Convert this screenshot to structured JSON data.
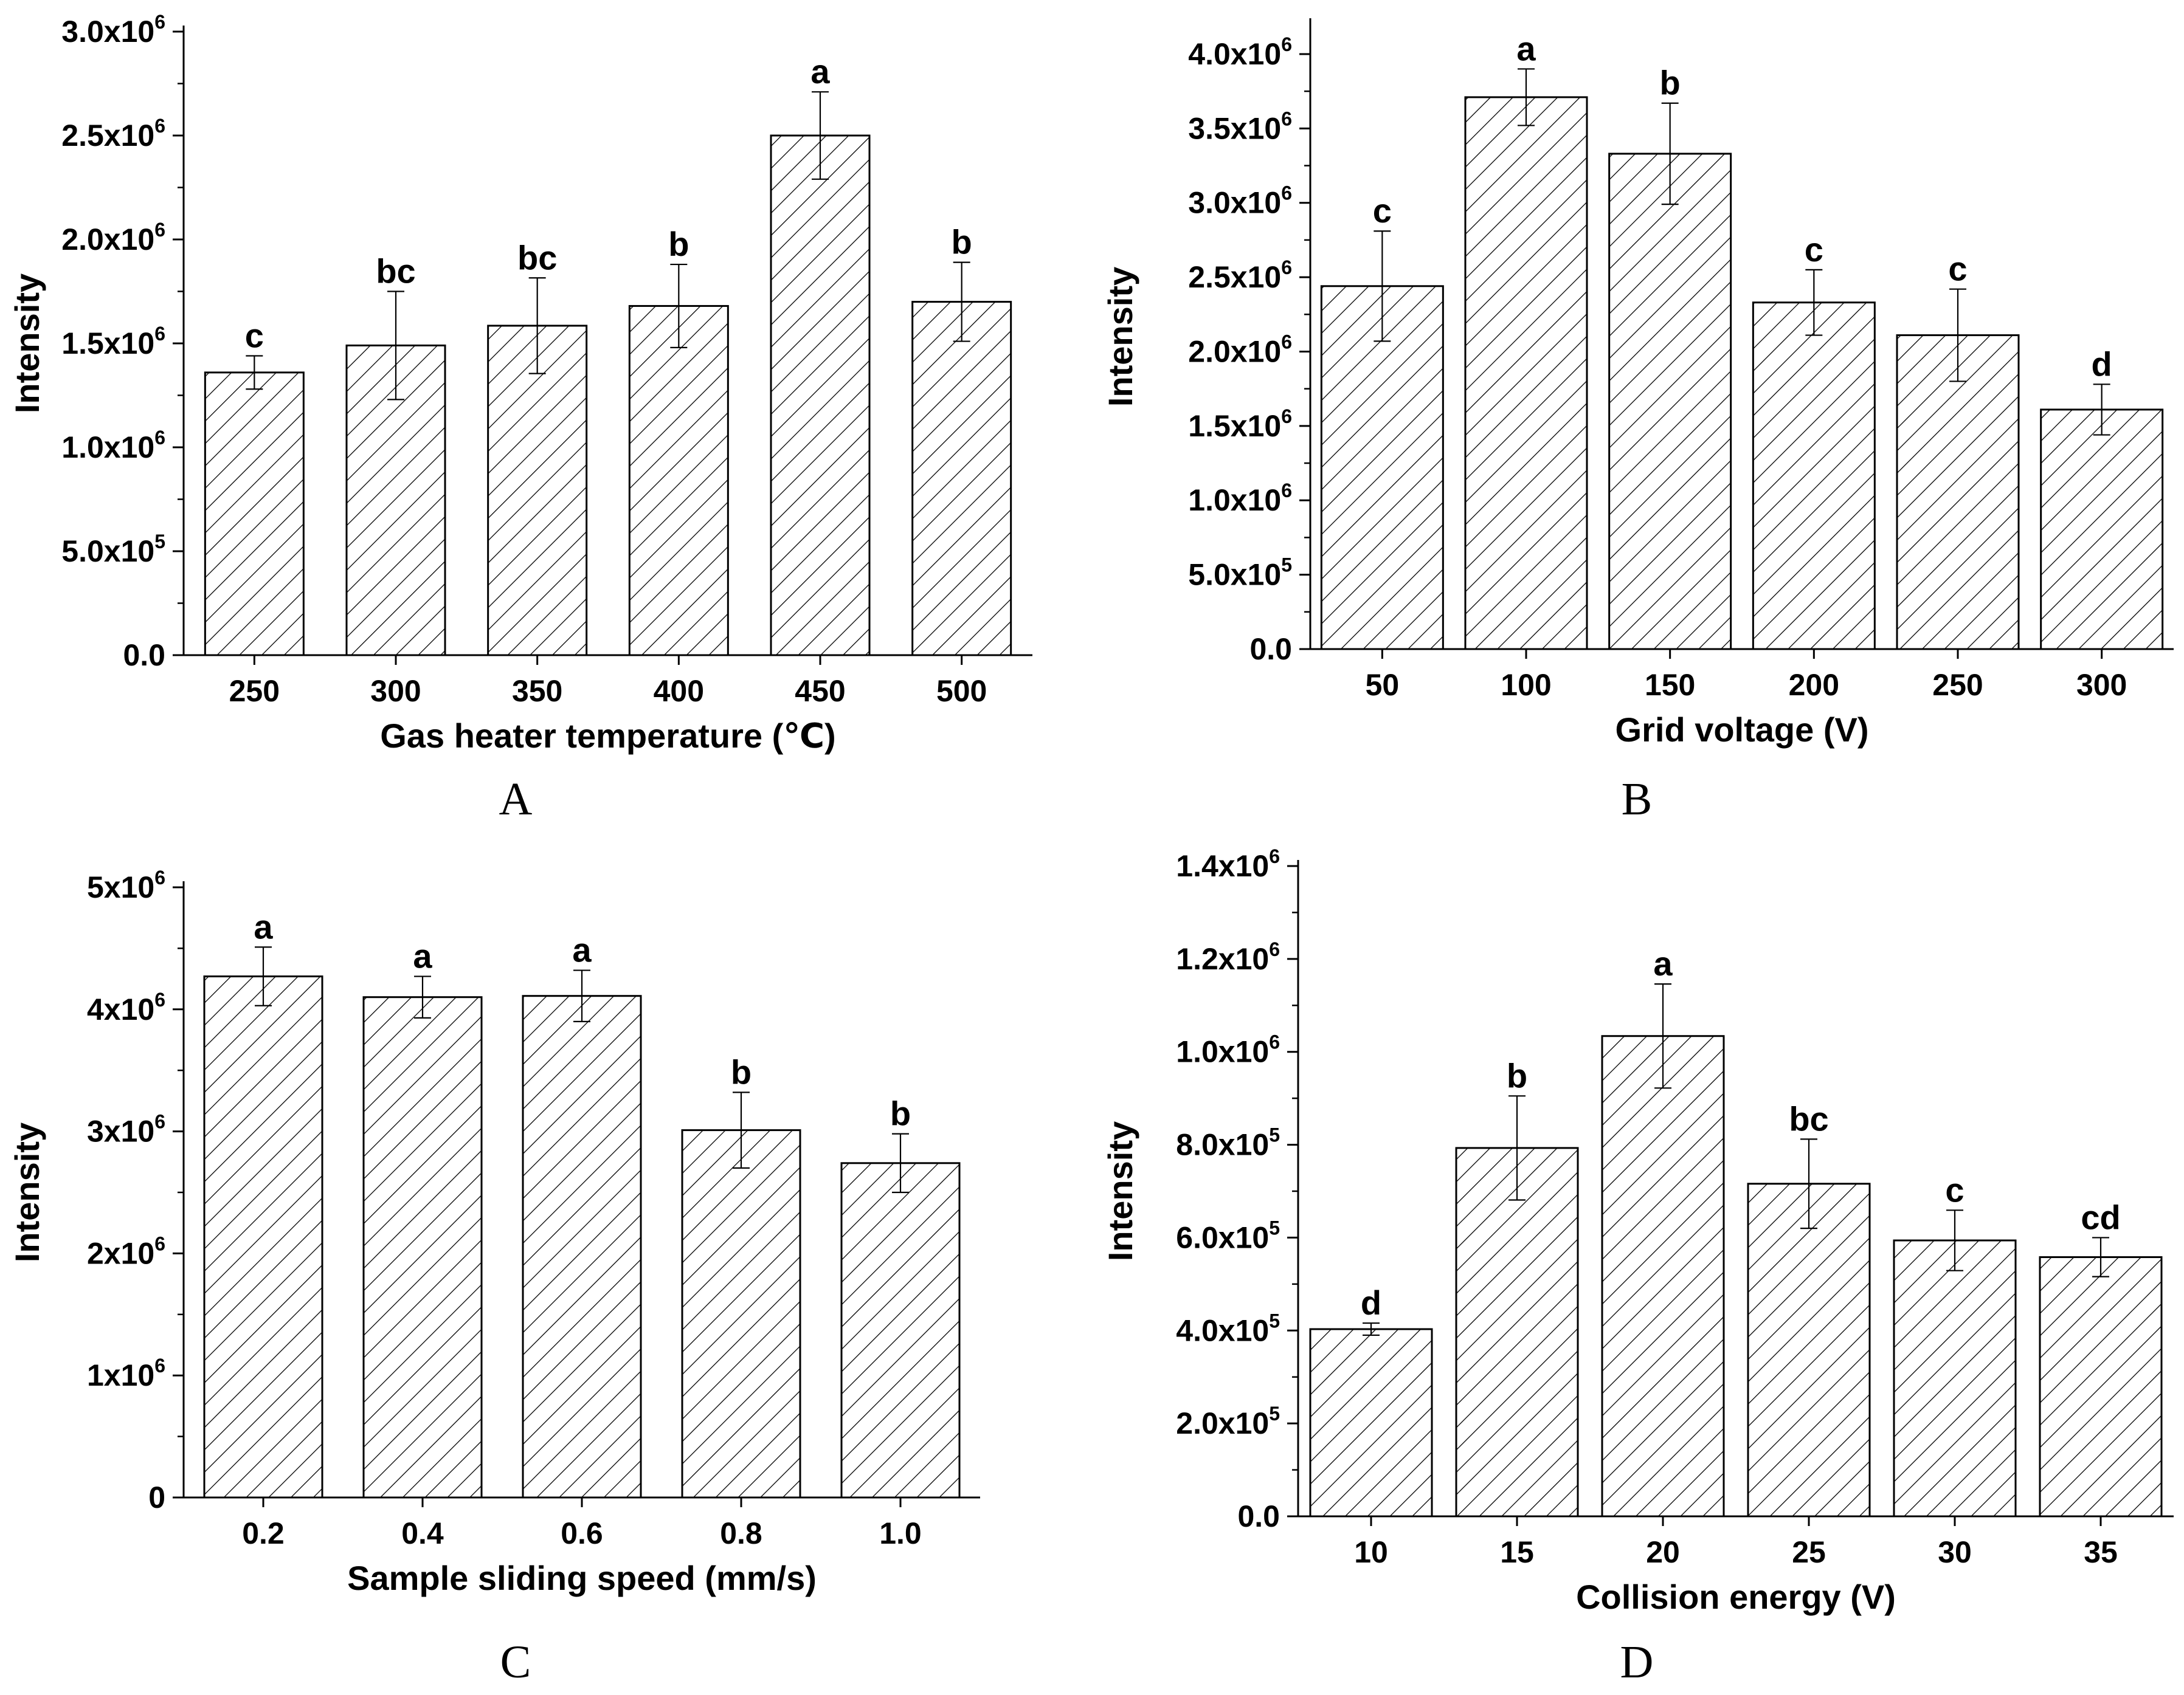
{
  "chart_data": [
    {
      "type": "bar",
      "panel": "A",
      "title": "",
      "xlabel": "Gas heater temperature (℃)",
      "ylabel": "Intensity",
      "categories": [
        "250",
        "300",
        "350",
        "400",
        "450",
        "500"
      ],
      "values": [
        1360000,
        1490000,
        1585000,
        1680000,
        2500000,
        1700000
      ],
      "errors": [
        80000,
        260000,
        230000,
        200000,
        210000,
        190000
      ],
      "significance": [
        "c",
        "bc",
        "bc",
        "b",
        "a",
        "b"
      ],
      "ylim": [
        0,
        3000000
      ],
      "yticks": [
        0,
        500000,
        1000000,
        1500000,
        2000000,
        2500000,
        3000000
      ],
      "ytick_labels": [
        {
          "mant": "0.0",
          "exp": ""
        },
        {
          "mant": "5.0x10",
          "exp": "5"
        },
        {
          "mant": "1.0x10",
          "exp": "6"
        },
        {
          "mant": "1.5x10",
          "exp": "6"
        },
        {
          "mant": "2.0x10",
          "exp": "6"
        },
        {
          "mant": "2.5x10",
          "exp": "6"
        },
        {
          "mant": "3.0x10",
          "exp": "6"
        }
      ],
      "grid": false
    },
    {
      "type": "bar",
      "panel": "B",
      "title": "",
      "xlabel": "Grid voltage (V)",
      "ylabel": "Intensity",
      "categories": [
        "50",
        "100",
        "150",
        "200",
        "250",
        "300"
      ],
      "values": [
        2440000,
        3710000,
        3330000,
        2330000,
        2110000,
        1610000
      ],
      "errors": [
        370000,
        190000,
        340000,
        220000,
        310000,
        170000
      ],
      "significance": [
        "c",
        "a",
        "b",
        "c",
        "c",
        "d"
      ],
      "ylim": [
        0,
        4200000
      ],
      "yticks": [
        0,
        500000,
        1000000,
        1500000,
        2000000,
        2500000,
        3000000,
        3500000,
        4000000
      ],
      "ytick_labels": [
        {
          "mant": "0.0",
          "exp": ""
        },
        {
          "mant": "5.0x10",
          "exp": "5"
        },
        {
          "mant": "1.0x10",
          "exp": "6"
        },
        {
          "mant": "1.5x10",
          "exp": "6"
        },
        {
          "mant": "2.0x10",
          "exp": "6"
        },
        {
          "mant": "2.5x10",
          "exp": "6"
        },
        {
          "mant": "3.0x10",
          "exp": "6"
        },
        {
          "mant": "3.5x10",
          "exp": "6"
        },
        {
          "mant": "4.0x10",
          "exp": "6"
        }
      ],
      "grid": false
    },
    {
      "type": "bar",
      "panel": "C",
      "title": "",
      "xlabel": "Sample sliding speed (mm/s)",
      "ylabel": "Intensity",
      "categories": [
        "0.2",
        "0.4",
        "0.6",
        "0.8",
        "1.0"
      ],
      "values": [
        4270000,
        4100000,
        4110000,
        3010000,
        2740000
      ],
      "errors": [
        240000,
        170000,
        210000,
        310000,
        240000
      ],
      "significance": [
        "a",
        "a",
        "a",
        "b",
        "b"
      ],
      "ylim": [
        0,
        5000000
      ],
      "yticks": [
        0,
        1000000,
        2000000,
        3000000,
        4000000,
        5000000
      ],
      "ytick_labels": [
        {
          "mant": "0",
          "exp": ""
        },
        {
          "mant": "1x10",
          "exp": "6"
        },
        {
          "mant": "2x10",
          "exp": "6"
        },
        {
          "mant": "3x10",
          "exp": "6"
        },
        {
          "mant": "4x10",
          "exp": "6"
        },
        {
          "mant": "5x10",
          "exp": "6"
        }
      ],
      "grid": false
    },
    {
      "type": "bar",
      "panel": "D",
      "title": "",
      "xlabel": "Collision energy (V)",
      "ylabel": "Intensity",
      "categories": [
        "10",
        "15",
        "20",
        "25",
        "30",
        "35"
      ],
      "values": [
        403000,
        793000,
        1034000,
        716000,
        594000,
        558000
      ],
      "errors": [
        13000,
        112000,
        112000,
        96000,
        65000,
        42000
      ],
      "significance": [
        "d",
        "b",
        "a",
        "bc",
        "c",
        "cd"
      ],
      "ylim": [
        0,
        1400000
      ],
      "yticks": [
        0,
        200000,
        400000,
        600000,
        800000,
        1000000,
        1200000,
        1400000
      ],
      "ytick_labels": [
        {
          "mant": "0.0",
          "exp": ""
        },
        {
          "mant": "2.0x10",
          "exp": "5"
        },
        {
          "mant": "4.0x10",
          "exp": "5"
        },
        {
          "mant": "6.0x10",
          "exp": "5"
        },
        {
          "mant": "8.0x10",
          "exp": "5"
        },
        {
          "mant": "1.0x10",
          "exp": "6"
        },
        {
          "mant": "1.2x10",
          "exp": "6"
        },
        {
          "mant": "1.4x10",
          "exp": "6"
        }
      ],
      "grid": false
    }
  ],
  "panel_labels": [
    "A",
    "B",
    "C",
    "D"
  ]
}
